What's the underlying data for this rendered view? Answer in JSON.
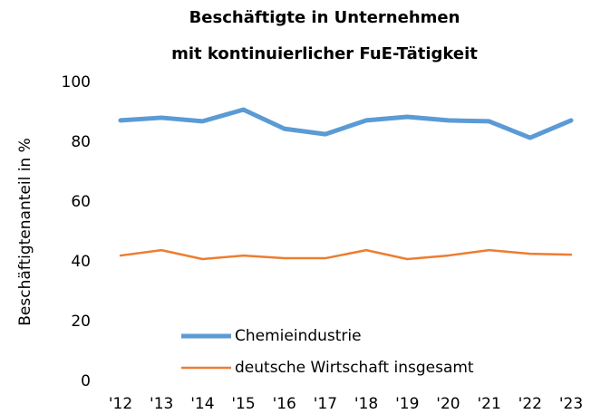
{
  "chart_data": {
    "type": "line",
    "title": [
      "Beschäftigte in Unternehmen",
      "mit kontinuierlicher FuE-Tätigkeit"
    ],
    "y_label": "Beschäftigtenanteil in %",
    "categories": [
      "'12",
      "'13",
      "'14",
      "'15",
      "'16",
      "'17",
      "'18",
      "'19",
      "'20",
      "'21",
      "'22",
      "'23"
    ],
    "series": [
      {
        "name": "Chemieindustrie",
        "color": "#5b9bd5",
        "width": 5,
        "values": [
          87.3,
          88.2,
          87.0,
          90.9,
          84.5,
          82.7,
          87.3,
          88.5,
          87.3,
          87.0,
          81.5,
          87.3
        ]
      },
      {
        "name": "deutsche Wirtschaft insgesamt",
        "color": "#ed7d31",
        "width": 2.5,
        "values": [
          42.1,
          43.9,
          40.9,
          42.1,
          41.2,
          41.2,
          43.9,
          40.9,
          42.1,
          43.9,
          42.7,
          42.4
        ]
      }
    ],
    "ylim": [
      0,
      100
    ],
    "yticks": [
      0,
      20,
      40,
      60,
      80,
      100
    ],
    "grid": false,
    "legend": "lower left"
  }
}
